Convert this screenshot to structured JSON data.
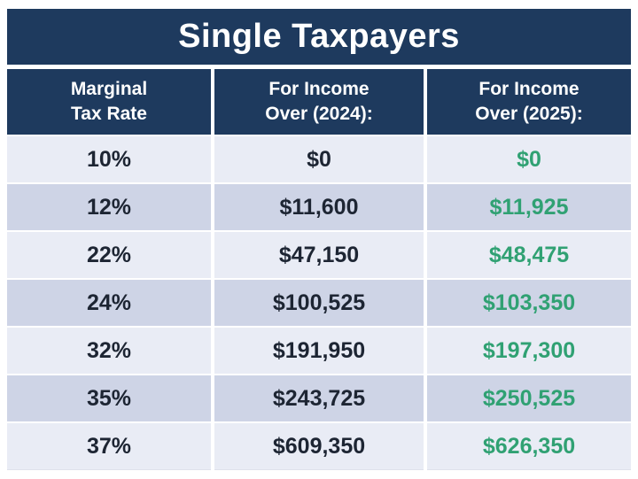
{
  "title": "Single Taxpayers",
  "header_display": {
    "col1": "Marginal\nTax Rate",
    "col2": "For Income\nOver (2024):",
    "col3": "For Income\nOver (2025):"
  },
  "chart_data": {
    "type": "table",
    "title": "Single Taxpayers",
    "columns": [
      "Marginal Tax Rate",
      "For Income Over (2024):",
      "For Income Over (2025):"
    ],
    "rows": [
      [
        "10%",
        "$0",
        "$0"
      ],
      [
        "12%",
        "$11,600",
        "$11,925"
      ],
      [
        "22%",
        "$47,150",
        "$48,475"
      ],
      [
        "24%",
        "$100,525",
        "$103,350"
      ],
      [
        "32%",
        "$191,950",
        "$197,300"
      ],
      [
        "35%",
        "$243,725",
        "$250,525"
      ],
      [
        "37%",
        "$609,350",
        "$626,350"
      ]
    ],
    "layout_hints": {
      "alternating_rows": true,
      "year2025_column_color": "#30a173",
      "header_background": "#1e3a5e",
      "row_light": "#e9ecf5",
      "row_dark": "#ced4e6"
    }
  },
  "colors": {
    "navy": "#1e3a5e",
    "green": "#30a173",
    "dark_text": "#1d2533",
    "row_light": "#e9ecf5",
    "row_dark": "#ced4e6",
    "background": "#ffffff"
  }
}
